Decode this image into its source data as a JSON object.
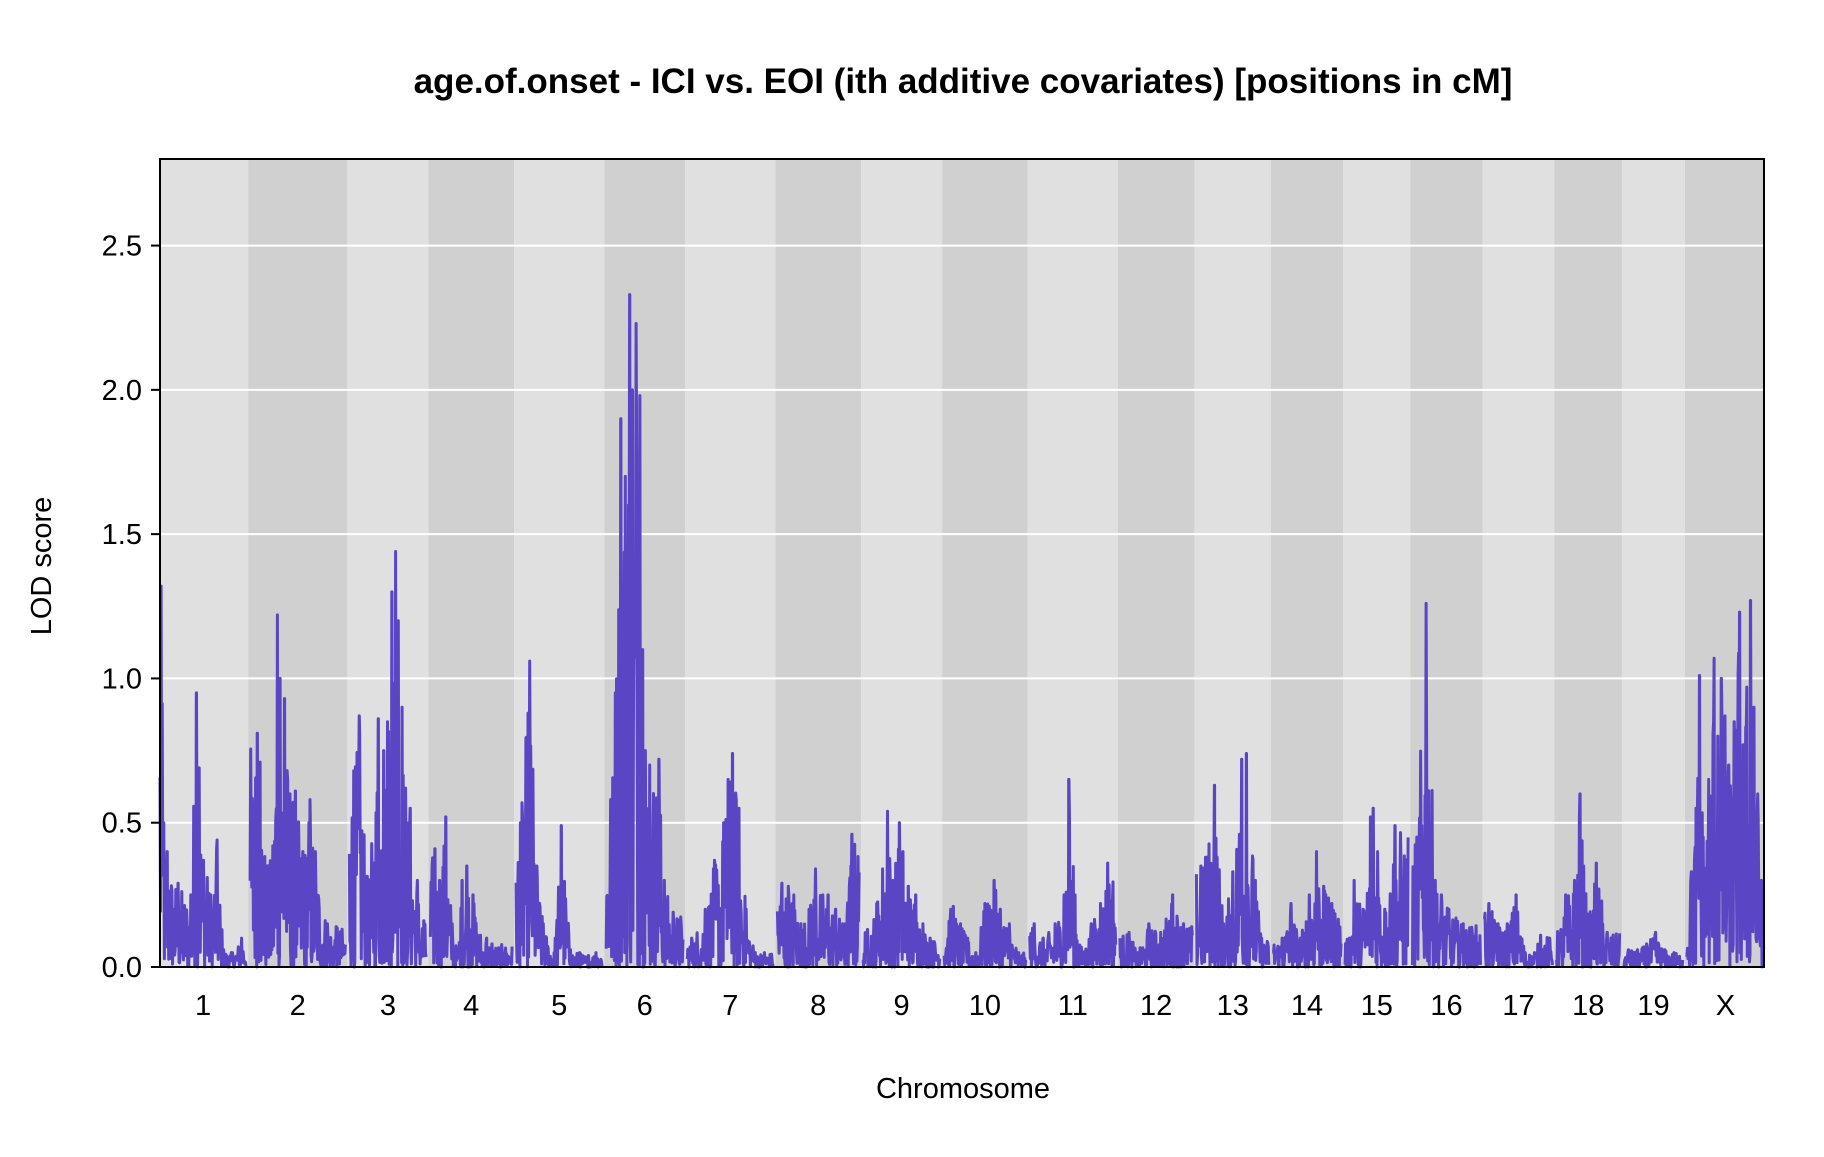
{
  "chart_data": {
    "type": "line",
    "title": "age.of.onset - ICI vs. EOI (ith additive covariates) [positions in cM]",
    "xlabel": "Chromosome",
    "ylabel": "LOD score",
    "ylim": [
      0,
      2.8
    ],
    "yticks": [
      0.0,
      0.5,
      1.0,
      1.5,
      2.0,
      2.5
    ],
    "ytick_labels": [
      "0.0",
      "0.5",
      "1.0",
      "1.5",
      "2.0",
      "2.5"
    ],
    "grid": true,
    "legend": "none",
    "band_colors": [
      "#e0e0e0",
      "#d0d0d0"
    ],
    "gridline_color": "#ffffff",
    "line_color": "#5a45c4",
    "chromosomes": [
      {
        "name": "1",
        "length": 95,
        "peaks": [
          [
            1,
            1.32
          ],
          [
            4,
            0.5
          ],
          [
            8,
            0.4
          ],
          [
            20,
            0.29
          ],
          [
            34,
            0.25
          ],
          [
            40,
            0.95
          ],
          [
            43,
            0.69
          ],
          [
            48,
            0.37
          ],
          [
            52,
            0.31
          ],
          [
            56,
            0.25
          ],
          [
            63,
            0.44
          ],
          [
            70,
            0.06
          ],
          [
            80,
            0.05
          ],
          [
            90,
            0.1
          ]
        ]
      },
      {
        "name": "2",
        "length": 105,
        "peaks": [
          [
            8,
            0.81
          ],
          [
            11,
            0.71
          ],
          [
            18,
            0.35
          ],
          [
            25,
            0.42
          ],
          [
            30,
            1.22
          ],
          [
            33,
            1.0
          ],
          [
            38,
            0.93
          ],
          [
            44,
            0.6
          ],
          [
            50,
            0.61
          ],
          [
            58,
            0.4
          ],
          [
            66,
            0.58
          ],
          [
            72,
            0.4
          ],
          [
            85,
            0.15
          ],
          [
            95,
            0.14
          ]
        ]
      },
      {
        "name": "3",
        "length": 85,
        "peaks": [
          [
            5,
            0.68
          ],
          [
            11,
            0.87
          ],
          [
            21,
            0.25
          ],
          [
            32,
            0.86
          ],
          [
            38,
            0.75
          ],
          [
            42,
            0.85
          ],
          [
            47,
            1.3
          ],
          [
            51,
            1.44
          ],
          [
            54,
            1.2
          ],
          [
            58,
            0.9
          ],
          [
            62,
            0.62
          ],
          [
            67,
            0.55
          ],
          [
            75,
            0.3
          ],
          [
            82,
            0.16
          ]
        ]
      },
      {
        "name": "4",
        "length": 90,
        "peaks": [
          [
            5,
            0.41
          ],
          [
            10,
            0.3
          ],
          [
            17,
            0.52
          ],
          [
            24,
            0.15
          ],
          [
            30,
            0.05
          ],
          [
            35,
            0.3
          ],
          [
            40,
            0.35
          ],
          [
            47,
            0.25
          ],
          [
            55,
            0.11
          ],
          [
            62,
            0.1
          ],
          [
            68,
            0.08
          ]
        ]
      },
      {
        "name": "5",
        "length": 95,
        "peaks": [
          [
            5,
            0.5
          ],
          [
            15,
            1.06
          ],
          [
            23,
            0.35
          ],
          [
            30,
            0.15
          ],
          [
            42,
            0.05
          ],
          [
            50,
            0.49
          ],
          [
            60,
            0.06
          ],
          [
            70,
            0.05
          ],
          [
            80,
            0.04
          ],
          [
            88,
            0.05
          ]
        ]
      },
      {
        "name": "6",
        "length": 85,
        "peaks": [
          [
            5,
            0.58
          ],
          [
            10,
            0.95
          ],
          [
            16,
            1.9
          ],
          [
            21,
            1.7
          ],
          [
            26,
            2.33
          ],
          [
            29,
            2.0
          ],
          [
            33,
            2.23
          ],
          [
            37,
            1.98
          ],
          [
            40,
            1.1
          ],
          [
            43,
            0.75
          ],
          [
            48,
            0.7
          ],
          [
            58,
            0.72
          ],
          [
            64,
            0.3
          ],
          [
            74,
            0.19
          ]
        ]
      },
      {
        "name": "7",
        "length": 95,
        "peaks": [
          [
            5,
            0.1
          ],
          [
            20,
            0.2
          ],
          [
            30,
            0.37
          ],
          [
            40,
            0.5
          ],
          [
            45,
            0.65
          ],
          [
            50,
            0.74
          ],
          [
            57,
            0.55
          ],
          [
            65,
            0.2
          ],
          [
            75,
            0.05
          ],
          [
            85,
            0.05
          ]
        ]
      },
      {
        "name": "8",
        "length": 90,
        "peaks": [
          [
            5,
            0.29
          ],
          [
            12,
            0.28
          ],
          [
            18,
            0.25
          ],
          [
            26,
            0.15
          ],
          [
            35,
            0.2
          ],
          [
            42,
            0.34
          ],
          [
            50,
            0.25
          ],
          [
            56,
            0.25
          ],
          [
            64,
            0.2
          ],
          [
            75,
            0.15
          ],
          [
            82,
            0.46
          ]
        ]
      },
      {
        "name": "9",
        "length": 85,
        "peaks": [
          [
            5,
            0.13
          ],
          [
            15,
            0.22
          ],
          [
            27,
            0.54
          ],
          [
            33,
            0.3
          ],
          [
            40,
            0.5
          ],
          [
            44,
            0.4
          ],
          [
            50,
            0.28
          ],
          [
            58,
            0.25
          ],
          [
            66,
            0.15
          ],
          [
            74,
            0.1
          ]
        ]
      },
      {
        "name": "10",
        "length": 90,
        "peaks": [
          [
            10,
            0.21
          ],
          [
            18,
            0.15
          ],
          [
            26,
            0.1
          ],
          [
            35,
            0.05
          ],
          [
            45,
            0.22
          ],
          [
            55,
            0.3
          ],
          [
            62,
            0.2
          ],
          [
            72,
            0.15
          ],
          [
            82,
            0.05
          ]
        ]
      },
      {
        "name": "11",
        "length": 95,
        "peaks": [
          [
            5,
            0.15
          ],
          [
            15,
            0.1
          ],
          [
            28,
            0.15
          ],
          [
            38,
            0.25
          ],
          [
            43,
            0.65
          ],
          [
            50,
            0.25
          ],
          [
            58,
            0.05
          ],
          [
            68,
            0.15
          ],
          [
            78,
            0.22
          ],
          [
            86,
            0.36
          ]
        ]
      },
      {
        "name": "12",
        "length": 80,
        "peaks": [
          [
            10,
            0.12
          ],
          [
            20,
            0.05
          ],
          [
            32,
            0.15
          ],
          [
            45,
            0.12
          ],
          [
            58,
            0.25
          ],
          [
            70,
            0.15
          ]
        ]
      },
      {
        "name": "13",
        "length": 80,
        "peaks": [
          [
            5,
            0.35
          ],
          [
            10,
            0.38
          ],
          [
            20,
            0.63
          ],
          [
            30,
            0.15
          ],
          [
            40,
            0.33
          ],
          [
            50,
            0.72
          ],
          [
            55,
            0.74
          ],
          [
            65,
            0.3
          ],
          [
            72,
            0.1
          ]
        ]
      },
      {
        "name": "14",
        "length": 75,
        "peaks": [
          [
            10,
            0.1
          ],
          [
            20,
            0.22
          ],
          [
            30,
            0.1
          ],
          [
            40,
            0.25
          ],
          [
            48,
            0.4
          ],
          [
            56,
            0.28
          ],
          [
            65,
            0.22
          ]
        ]
      },
      {
        "name": "15",
        "length": 70,
        "peaks": [
          [
            5,
            0.1
          ],
          [
            10,
            0.3
          ],
          [
            20,
            0.2
          ],
          [
            28,
            0.52
          ],
          [
            31,
            0.55
          ],
          [
            36,
            0.4
          ],
          [
            44,
            0.2
          ],
          [
            55,
            0.49
          ]
        ]
      },
      {
        "name": "16",
        "length": 75,
        "peaks": [
          [
            5,
            0.45
          ],
          [
            15,
            1.26
          ],
          [
            25,
            0.3
          ],
          [
            32,
            0.25
          ],
          [
            40,
            0.2
          ],
          [
            48,
            0.17
          ],
          [
            56,
            0.15
          ]
        ]
      },
      {
        "name": "17",
        "length": 75,
        "peaks": [
          [
            5,
            0.22
          ],
          [
            15,
            0.15
          ],
          [
            25,
            0.15
          ],
          [
            35,
            0.25
          ],
          [
            45,
            0.05
          ],
          [
            55,
            0.05
          ],
          [
            62,
            0.11
          ]
        ]
      },
      {
        "name": "18",
        "length": 70,
        "peaks": [
          [
            5,
            0.13
          ],
          [
            10,
            0.25
          ],
          [
            20,
            0.3
          ],
          [
            26,
            0.6
          ],
          [
            30,
            0.35
          ],
          [
            36,
            0.17
          ],
          [
            44,
            0.36
          ],
          [
            56,
            0.12
          ]
        ]
      },
      {
        "name": "19",
        "length": 65,
        "peaks": [
          [
            5,
            0.06
          ],
          [
            15,
            0.06
          ],
          [
            25,
            0.08
          ],
          [
            35,
            0.12
          ],
          [
            45,
            0.06
          ],
          [
            55,
            0.05
          ]
        ]
      },
      {
        "name": "X",
        "length": 85,
        "peaks": [
          [
            5,
            0.33
          ],
          [
            10,
            0.55
          ],
          [
            14,
            1.01
          ],
          [
            18,
            0.45
          ],
          [
            24,
            0.65
          ],
          [
            30,
            1.07
          ],
          [
            34,
            0.8
          ],
          [
            38,
            1.0
          ],
          [
            42,
            0.87
          ],
          [
            46,
            0.7
          ],
          [
            52,
            0.85
          ],
          [
            58,
            1.23
          ],
          [
            62,
            0.77
          ],
          [
            66,
            0.97
          ],
          [
            70,
            1.27
          ],
          [
            74,
            0.9
          ],
          [
            78,
            0.6
          ],
          [
            82,
            0.3
          ]
        ]
      }
    ]
  }
}
